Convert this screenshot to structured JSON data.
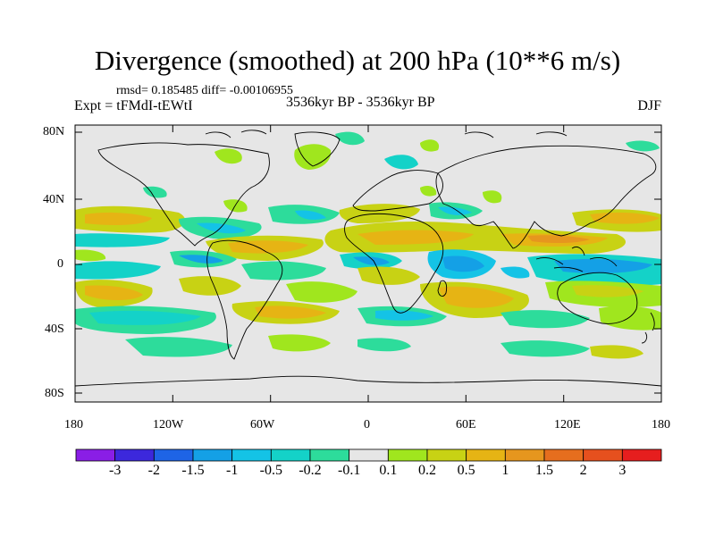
{
  "header": {
    "title": "Divergence (smoothed) at 200 hPa (10**6 m/s)",
    "stats": "rmsd= 0.185485 diff= -0.00106955",
    "experiment": "Expt = tFMdI-tEWtI",
    "period": "3536kyr BP - 3536kyr BP",
    "season": "DJF"
  },
  "axes": {
    "lat_ticks": [
      "80N",
      "40N",
      "0",
      "40S",
      "80S"
    ],
    "lon_ticks": [
      "180",
      "120W",
      "60W",
      "0",
      "60E",
      "120E",
      "180"
    ]
  },
  "colorbar": {
    "labels": [
      "-3",
      "-2",
      "-1.5",
      "-1",
      "-0.5",
      "-0.2",
      "-0.1",
      "0.1",
      "0.2",
      "0.5",
      "1",
      "1.5",
      "2",
      "3"
    ],
    "colors": [
      "#8a1ee6",
      "#3c28dc",
      "#1e64e6",
      "#14a0e6",
      "#14c3e6",
      "#14d2c8",
      "#2ddc9b",
      "#e6e6e6",
      "#a0e61e",
      "#c8d214",
      "#e6b414",
      "#e6961e",
      "#e66e1e",
      "#e6501e",
      "#e61e1e"
    ]
  },
  "map": {
    "background_color": "#e6e6e6",
    "coastline_color": "#000000"
  }
}
